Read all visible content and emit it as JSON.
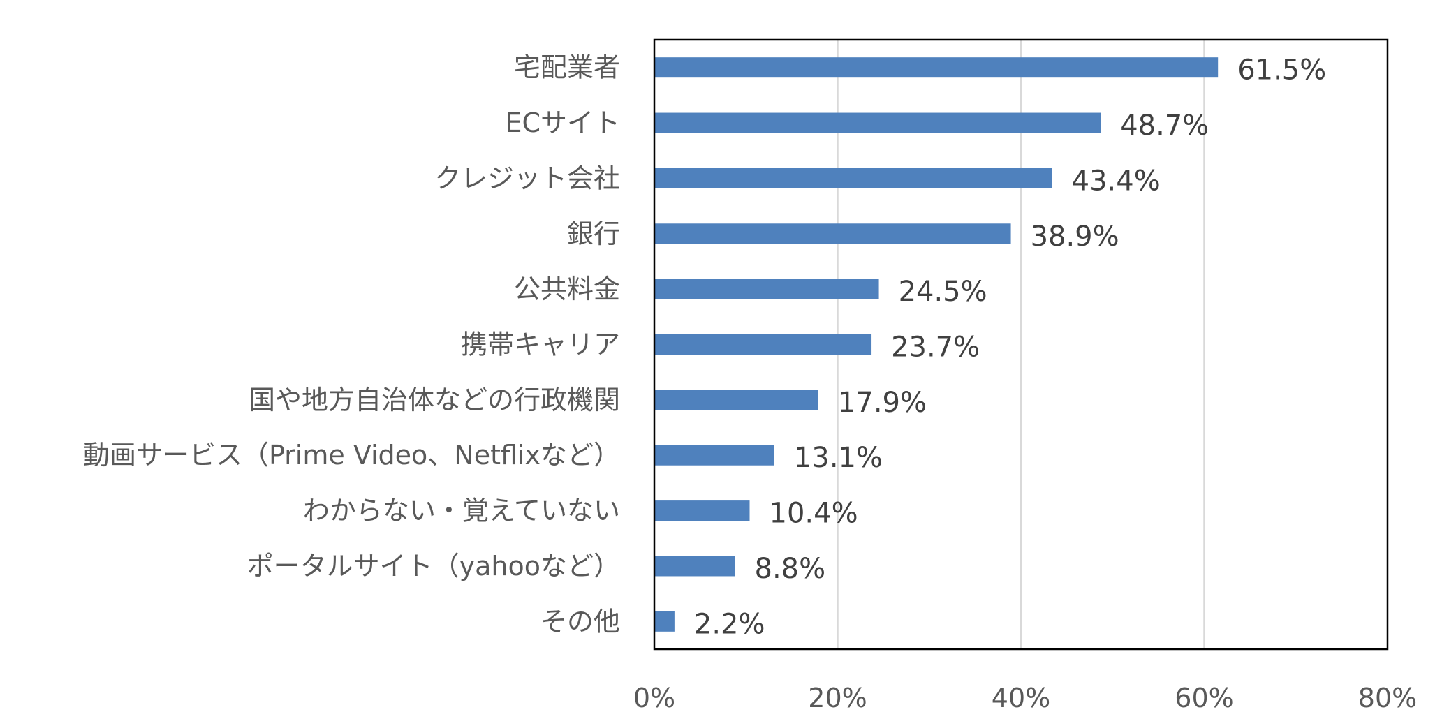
{
  "chart_data": {
    "type": "bar",
    "orientation": "horizontal",
    "categories": [
      "宅配業者",
      "ECサイト",
      "クレジット会社",
      "銀行",
      "公共料金",
      "携帯キャリア",
      "国や地方自治体などの行政機関",
      "動画サービス（Prime Video、Netflixなど）",
      "わからない・覚えていない",
      "ポータルサイト（yahooなど）",
      "その他"
    ],
    "values": [
      61.5,
      48.7,
      43.4,
      38.9,
      24.5,
      23.7,
      17.9,
      13.1,
      10.4,
      8.8,
      2.2
    ],
    "value_labels": [
      "61.5%",
      "48.7%",
      "43.4%",
      "38.9%",
      "24.5%",
      "23.7%",
      "17.9%",
      "13.1%",
      "10.4%",
      "8.8%",
      "2.2%"
    ],
    "x_ticks": [
      0,
      20,
      40,
      60,
      80
    ],
    "x_tick_labels": [
      "0%",
      "20%",
      "40%",
      "60%",
      "80%"
    ],
    "xlim": [
      0,
      80
    ],
    "grid": "vertical",
    "legend": "none",
    "bar_color": "#4f81bd",
    "title": "",
    "xlabel": "",
    "ylabel": ""
  }
}
